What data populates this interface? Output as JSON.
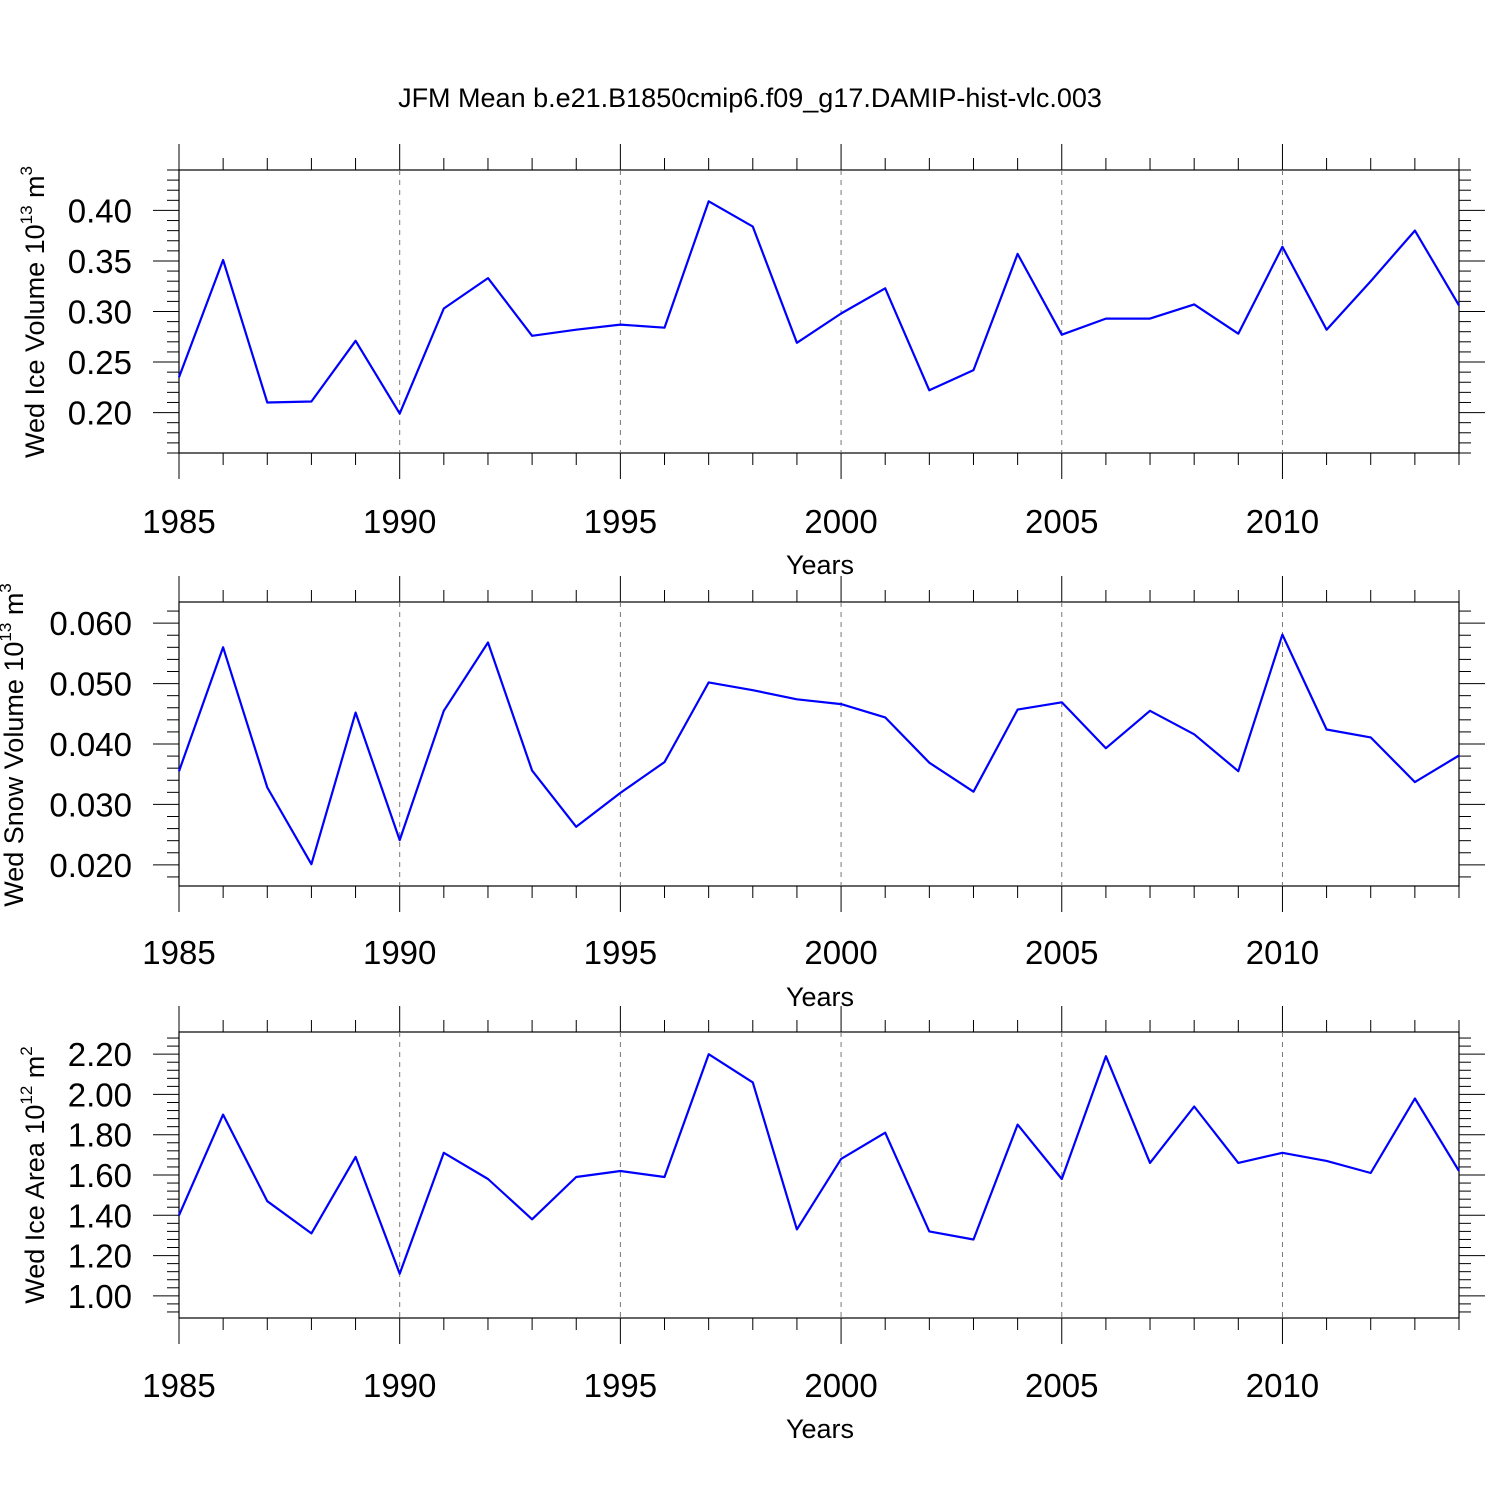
{
  "title": "JFM Mean b.e21.B1850cmip6.f09_g17.DAMIP-hist-vlc.003",
  "line_color": "#0000ff",
  "chart_data": [
    {
      "type": "line",
      "title": "",
      "xlabel": "Years",
      "ylabel_parts": [
        "Wed Ice Volume 10",
        "13",
        " m",
        "3"
      ],
      "xlim": [
        1985,
        2014
      ],
      "ylim": [
        0.16,
        0.44
      ],
      "xticks": [
        "1985",
        "1990",
        "1995",
        "2000",
        "2005",
        "2010"
      ],
      "yticks": [
        "0.20",
        "0.25",
        "0.30",
        "0.35",
        "0.40"
      ],
      "x": [
        1985,
        1986,
        1987,
        1988,
        1989,
        1990,
        1991,
        1992,
        1993,
        1994,
        1995,
        1996,
        1997,
        1998,
        1999,
        2000,
        2001,
        2002,
        2003,
        2004,
        2005,
        2006,
        2007,
        2008,
        2009,
        2010,
        2011,
        2012,
        2013,
        2014
      ],
      "series": [
        {
          "name": "Wed Ice Volume",
          "values": [
            0.235,
            0.351,
            0.21,
            0.211,
            0.271,
            0.199,
            0.303,
            0.333,
            0.276,
            0.282,
            0.287,
            0.284,
            0.409,
            0.384,
            0.269,
            0.298,
            0.323,
            0.222,
            0.242,
            0.357,
            0.277,
            0.293,
            0.293,
            0.307,
            0.278,
            0.364,
            0.282,
            0.33,
            0.38,
            0.306
          ]
        }
      ]
    },
    {
      "type": "line",
      "title": "",
      "xlabel": "Years",
      "ylabel_parts": [
        "Wed Snow Volume 10",
        "13",
        " m",
        "3"
      ],
      "xlim": [
        1985,
        2014
      ],
      "ylim": [
        0.0165,
        0.0635
      ],
      "xticks": [
        "1985",
        "1990",
        "1995",
        "2000",
        "2005",
        "2010"
      ],
      "yticks": [
        "0.020",
        "0.030",
        "0.040",
        "0.050",
        "0.060"
      ],
      "x": [
        1985,
        1986,
        1987,
        1988,
        1989,
        1990,
        1991,
        1992,
        1993,
        1994,
        1995,
        1996,
        1997,
        1998,
        1999,
        2000,
        2001,
        2002,
        2003,
        2004,
        2005,
        2006,
        2007,
        2008,
        2009,
        2010,
        2011,
        2012,
        2013,
        2014
      ],
      "series": [
        {
          "name": "Wed Snow Volume",
          "values": [
            0.0355,
            0.056,
            0.0328,
            0.0201,
            0.0452,
            0.0241,
            0.0455,
            0.0568,
            0.0356,
            0.0263,
            0.0319,
            0.037,
            0.0502,
            0.0489,
            0.0474,
            0.0466,
            0.0444,
            0.0369,
            0.0321,
            0.0457,
            0.0469,
            0.0393,
            0.0455,
            0.0416,
            0.0355,
            0.0581,
            0.0424,
            0.0411,
            0.0337,
            0.0381
          ]
        }
      ]
    },
    {
      "type": "line",
      "title": "",
      "xlabel": "Years",
      "ylabel_parts": [
        "Wed Ice Area 10",
        "12",
        " m",
        "2"
      ],
      "xlim": [
        1985,
        2014
      ],
      "ylim": [
        0.89,
        2.31
      ],
      "xticks": [
        "1985",
        "1990",
        "1995",
        "2000",
        "2005",
        "2010"
      ],
      "yticks": [
        "1.00",
        "1.20",
        "1.40",
        "1.60",
        "1.80",
        "2.00",
        "2.20"
      ],
      "x": [
        1985,
        1986,
        1987,
        1988,
        1989,
        1990,
        1991,
        1992,
        1993,
        1994,
        1995,
        1996,
        1997,
        1998,
        1999,
        2000,
        2001,
        2002,
        2003,
        2004,
        2005,
        2006,
        2007,
        2008,
        2009,
        2010,
        2011,
        2012,
        2013,
        2014
      ],
      "series": [
        {
          "name": "Wed Ice Area",
          "values": [
            1.4,
            1.9,
            1.47,
            1.31,
            1.69,
            1.11,
            1.71,
            1.58,
            1.38,
            1.59,
            1.62,
            1.59,
            2.2,
            2.06,
            1.33,
            1.68,
            1.81,
            1.32,
            1.28,
            1.85,
            1.58,
            2.19,
            1.66,
            1.94,
            1.66,
            1.71,
            1.67,
            1.61,
            1.98,
            1.62
          ]
        }
      ]
    }
  ]
}
